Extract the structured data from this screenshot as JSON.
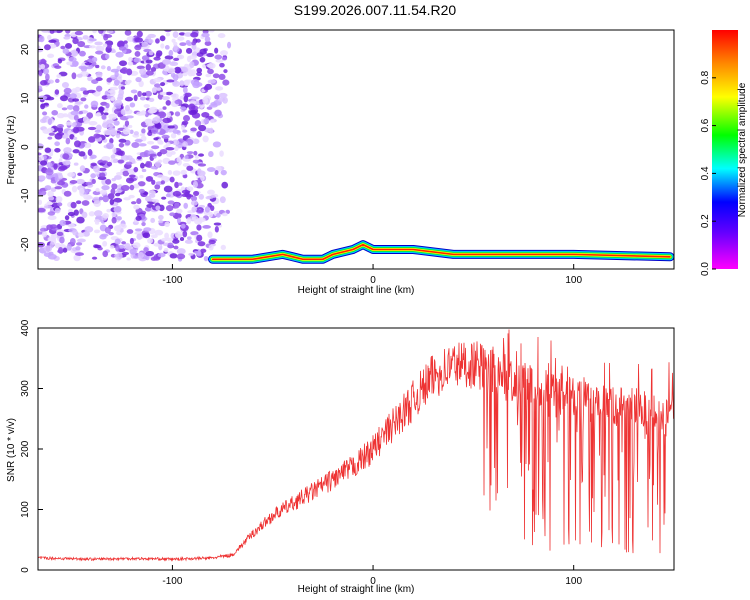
{
  "title": "S199.2026.007.11.54.R20",
  "colorbar": {
    "label": "Normalized spectral amplitude",
    "ticks": [
      "0.0",
      "0.2",
      "0.4",
      "0.6",
      "0.8"
    ]
  },
  "chart_data": [
    {
      "type": "heatmap",
      "xlabel": "Height of straight line (km)",
      "ylabel": "Frequency (Hz)",
      "xlim": [
        -167,
        150
      ],
      "ylim": [
        -25,
        24
      ],
      "x_ticks": [
        "-100",
        "0",
        "100"
      ],
      "y_ticks": [
        "-20",
        "-10",
        "0",
        "10",
        "20"
      ],
      "colormap": "rainbow (magenta-blue-cyan-green-yellow-red)",
      "noise_region_x": [
        -167,
        -70
      ],
      "dominant_frequency_track": {
        "x": [
          -80,
          -60,
          -45,
          -40,
          -35,
          -25,
          -20,
          -10,
          -5,
          0,
          20,
          40,
          60,
          100,
          148
        ],
        "y": [
          -23,
          -23,
          -22,
          -22.5,
          -23,
          -23,
          -22,
          -21,
          -20,
          -21,
          -21,
          -22,
          -22,
          -22,
          -22.5
        ]
      }
    },
    {
      "type": "line",
      "xlabel": "Height of straight line (km)",
      "ylabel": "SNR (10 * v/v)",
      "xlim": [
        -167,
        150
      ],
      "ylim": [
        0,
        400
      ],
      "x_ticks": [
        "-100",
        "0",
        "100"
      ],
      "y_ticks": [
        "0",
        "100",
        "200",
        "300",
        "400"
      ],
      "series": [
        {
          "color": "#ee3333",
          "x": [
            -167,
            -140,
            -120,
            -100,
            -80,
            -70,
            -60,
            -50,
            -40,
            -30,
            -20,
            -10,
            0,
            10,
            20,
            30,
            40,
            50,
            60,
            70,
            80,
            90,
            100,
            110,
            120,
            130,
            140,
            150
          ],
          "y": [
            20,
            18,
            19,
            18,
            20,
            25,
            60,
            90,
            110,
            130,
            150,
            170,
            200,
            240,
            280,
            320,
            340,
            340,
            330,
            320,
            310,
            300,
            290,
            280,
            270,
            270,
            260,
            270
          ]
        }
      ]
    }
  ]
}
